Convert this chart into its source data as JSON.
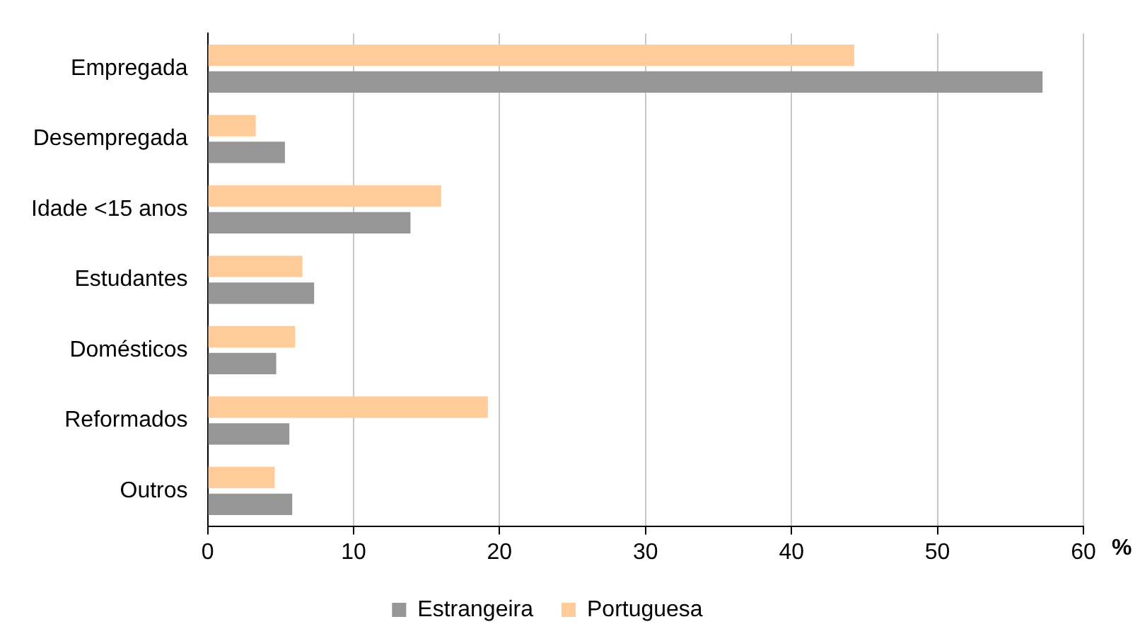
{
  "chart_data": {
    "type": "bar",
    "orientation": "horizontal",
    "xlabel": "%",
    "categories": [
      "Empregada",
      "Desempregada",
      "Idade <15 anos",
      "Estudantes",
      "Domésticos",
      "Reformados",
      "Outros"
    ],
    "series": [
      {
        "name": "Estrangeira",
        "color": "#969696",
        "values": [
          57.2,
          5.3,
          13.9,
          7.3,
          4.7,
          5.6,
          5.8
        ]
      },
      {
        "name": "Portuguesa",
        "color": "#ffcc99",
        "values": [
          44.3,
          3.3,
          16.0,
          6.5,
          6.0,
          19.2,
          4.6
        ]
      }
    ],
    "xlim": [
      0,
      60
    ],
    "xticks": [
      0,
      10,
      20,
      30,
      40,
      50,
      60
    ],
    "grid": "x",
    "legend": "bottom"
  }
}
